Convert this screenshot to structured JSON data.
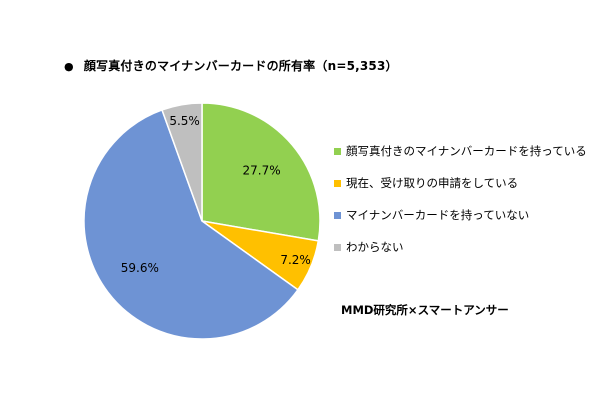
{
  "chart_data": {
    "type": "pie",
    "title": "顔写真付きのマイナンバーカードの所有率（n=5,353）",
    "categories": [
      "顔写真付きのマイナンバーカードを持っている",
      "現在、受け取りの申請をしている",
      "マイナンバーカードを持っていない",
      "わからない"
    ],
    "values": [
      27.7,
      7.2,
      59.6,
      5.5
    ],
    "labels": [
      "27.7%",
      "7.2%",
      "59.6%",
      "5.5%"
    ],
    "colors": [
      "#92D050",
      "#FFC000",
      "#6E93D4",
      "#BFBFBF"
    ],
    "legend_position": "right",
    "start_angle": "12 o'clock",
    "direction": "clockwise"
  },
  "bullet": "●",
  "source": "MMD研究所×スマートアンサー"
}
